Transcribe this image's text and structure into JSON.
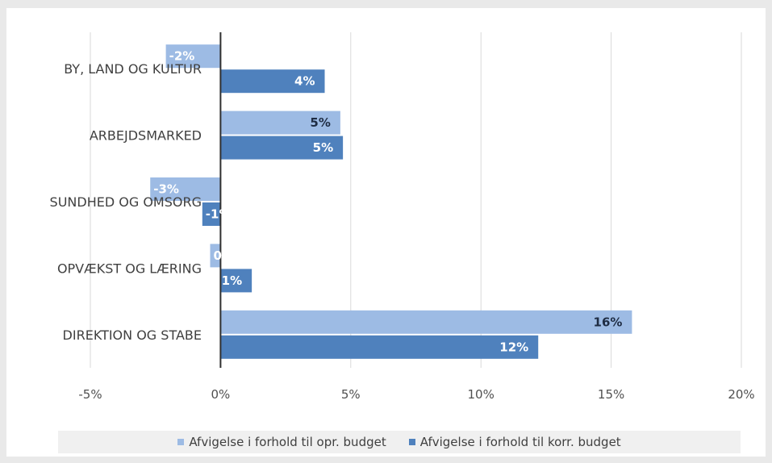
{
  "chart_data": {
    "type": "bar",
    "orientation": "horizontal",
    "categories": [
      "BY, LAND OG KULTUR",
      "ARBEJDSMARKED",
      "SUNDHED OG OMSORG",
      "OPVÆKST OG LÆRING",
      "DIREKTION OG STABE"
    ],
    "series": [
      {
        "name": "Afvigelse i forhold til opr. budget",
        "values": [
          -2.1,
          4.6,
          -2.7,
          -0.4,
          15.8
        ],
        "labels": [
          "-2%",
          "5%",
          "-3%",
          "0%",
          "16%"
        ],
        "color": "#9dbbe4"
      },
      {
        "name": "Afvigelse i forhold til korr. budget",
        "values": [
          4.0,
          4.7,
          -0.7,
          1.2,
          12.2
        ],
        "labels": [
          "4%",
          "5%",
          "-1%",
          "1%",
          "12%"
        ],
        "color": "#4f81bd"
      }
    ],
    "xlim": [
      -5,
      20
    ],
    "xticks": [
      -5,
      0,
      5,
      10,
      15,
      20
    ],
    "xtick_labels": [
      "-5%",
      "0%",
      "5%",
      "10%",
      "15%",
      "20%"
    ],
    "grid": true,
    "legend_position": "bottom"
  }
}
